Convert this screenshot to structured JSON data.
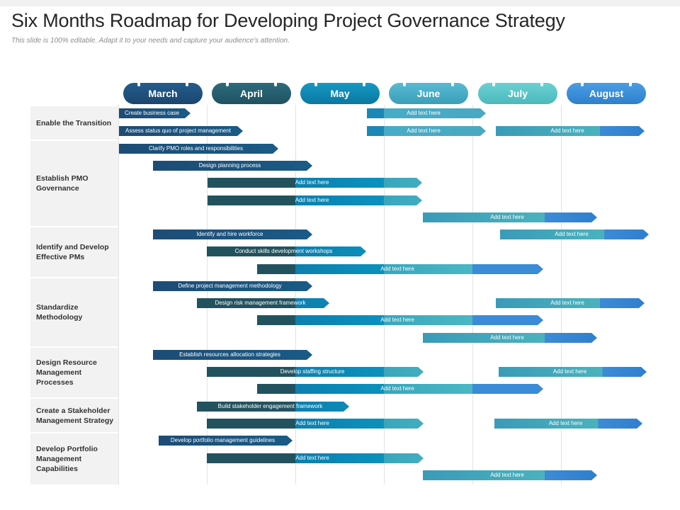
{
  "title": "Six Months Roadmap for Developing Project Governance Strategy",
  "subtitle": "This slide is 100% editable. Adapt it to your needs and capture your audience's attention.",
  "months": [
    "March",
    "April",
    "May",
    "June",
    "July",
    "August"
  ],
  "colors": {
    "month_header": [
      "#1c4f7c",
      "#255e6e",
      "#0a87b1",
      "#45abc5",
      "#5ac6c8",
      "#3a8ed8"
    ],
    "palette": [
      "#1a4e7a",
      "#22566a",
      "#1577a2",
      "#0b8fbe",
      "#3aa6bc",
      "#4ab7c4",
      "#3b8bd6"
    ]
  },
  "groups": [
    {
      "label": "Enable the Transition"
    },
    {
      "label": "Establish PMO Governance"
    },
    {
      "label": "Identify and Develop Effective PMs"
    },
    {
      "label": "Standardize Methodology"
    },
    {
      "label": "Design Resource Management Processes"
    },
    {
      "label": "Create a Stakeholder Management Strategy"
    },
    {
      "label": "Develop Portfolio Management Capabilities"
    }
  ],
  "bars": [
    {
      "label": "Create business case",
      "start": "March",
      "end": "March",
      "group": "Enable the Transition"
    },
    {
      "label": "Add text here",
      "start": "June",
      "end": "June",
      "group": "Enable the Transition"
    },
    {
      "label": "Assess status quo of project management",
      "start": "March",
      "end": "April",
      "group": "Enable the Transition"
    },
    {
      "label": "Add text here",
      "start": "June",
      "end": "June",
      "group": "Enable the Transition"
    },
    {
      "label": "Add text here",
      "start": "July",
      "end": "August",
      "group": "Enable the Transition"
    },
    {
      "label": "Clarify PMO roles and responsibilities",
      "start": "March",
      "end": "April",
      "group": "Establish PMO Governance"
    },
    {
      "label": "Design planning process",
      "start": "March",
      "end": "May",
      "group": "Establish PMO Governance"
    },
    {
      "label": "Add text here",
      "start": "April",
      "end": "June",
      "group": "Establish PMO Governance"
    },
    {
      "label": "Add text here",
      "start": "April",
      "end": "June",
      "group": "Establish PMO Governance"
    },
    {
      "label": "Add text here",
      "start": "June",
      "end": "August",
      "group": "Establish PMO Governance"
    },
    {
      "label": "Identify and hire workforce",
      "start": "March",
      "end": "May",
      "group": "Identify and Develop Effective PMs"
    },
    {
      "label": "Add text here",
      "start": "July",
      "end": "August",
      "group": "Identify and Develop Effective PMs"
    },
    {
      "label": "Conduct skills development workshops",
      "start": "April",
      "end": "May",
      "group": "Identify and Develop Effective PMs"
    },
    {
      "label": "Add text here",
      "start": "April",
      "end": "July",
      "group": "Identify and Develop Effective PMs"
    },
    {
      "label": "Define project management methodology",
      "start": "March",
      "end": "May",
      "group": "Standardize Methodology"
    },
    {
      "label": "Design risk management framework",
      "start": "March",
      "end": "May",
      "group": "Standardize Methodology"
    },
    {
      "label": "Add text here",
      "start": "July",
      "end": "August",
      "group": "Standardize Methodology"
    },
    {
      "label": "Add text here",
      "start": "April",
      "end": "July",
      "group": "Standardize Methodology"
    },
    {
      "label": "Add text here",
      "start": "June",
      "end": "August",
      "group": "Standardize Methodology"
    },
    {
      "label": "Establish resources allocation strategies",
      "start": "March",
      "end": "May",
      "group": "Design Resource Management Processes"
    },
    {
      "label": "Develop staffing structure",
      "start": "April",
      "end": "June",
      "group": "Design Resource Management Processes"
    },
    {
      "label": "Add text here",
      "start": "July",
      "end": "August",
      "group": "Design Resource Management Processes"
    },
    {
      "label": "Add text here",
      "start": "April",
      "end": "July",
      "group": "Design Resource Management Processes"
    },
    {
      "label": "Build stakeholder engagement framework",
      "start": "March",
      "end": "May",
      "group": "Create a Stakeholder Management Strategy"
    },
    {
      "label": "Add text here",
      "start": "April",
      "end": "June",
      "group": "Create a Stakeholder Management Strategy"
    },
    {
      "label": "Add text here",
      "start": "July",
      "end": "August",
      "group": "Create a Stakeholder Management Strategy"
    },
    {
      "label": "Develop portfolio management guidelines",
      "start": "March",
      "end": "April",
      "group": "Develop Portfolio Management Capabilities"
    },
    {
      "label": "Add text here",
      "start": "April",
      "end": "June",
      "group": "Develop Portfolio Management Capabilities"
    },
    {
      "label": "Add text here",
      "start": "June",
      "end": "August",
      "group": "Develop Portfolio Management Capabilities"
    }
  ]
}
